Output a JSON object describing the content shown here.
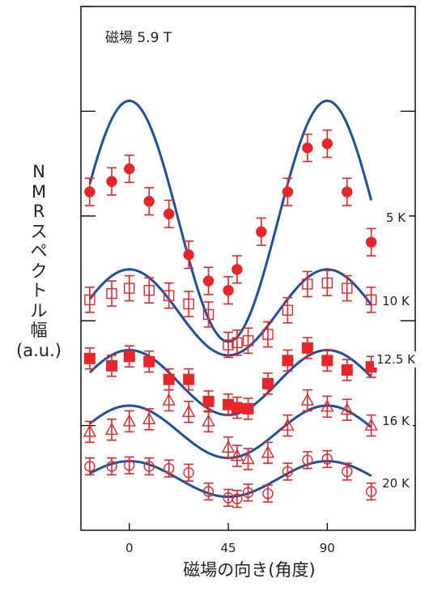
{
  "chart_data": {
    "type": "scatter",
    "annotation": "磁場 5.9 T",
    "xlabel": "磁場の向き(角度)",
    "ylabel_lines": [
      "N",
      "M",
      "R",
      "ス",
      "ペ",
      "ク",
      "ト",
      "ル",
      "幅",
      "(a.u.)"
    ],
    "x_ticks": [
      0,
      45,
      90
    ],
    "xlim": [
      -22,
      130
    ],
    "y_ticks": [
      1,
      2,
      3,
      4,
      5
    ],
    "ylim": [
      0,
      5
    ],
    "colors": {
      "data": "#e8262a",
      "fit": "#1f4f9f",
      "axis": "#000000"
    },
    "series": [
      {
        "name": "5 K",
        "marker": "filled-circle",
        "offset": 2.95,
        "amp": 1.15,
        "points": [
          {
            "x": -18,
            "y": 3.23,
            "err": 0.13
          },
          {
            "x": -8,
            "y": 3.33,
            "err": 0.13
          },
          {
            "x": 0,
            "y": 3.45,
            "err": 0.13
          },
          {
            "x": 9,
            "y": 3.14,
            "err": 0.13
          },
          {
            "x": 18,
            "y": 3.02,
            "err": 0.13
          },
          {
            "x": 27,
            "y": 2.63,
            "err": 0.13
          },
          {
            "x": 36,
            "y": 2.38,
            "err": 0.13
          },
          {
            "x": 45,
            "y": 2.29,
            "err": 0.13
          },
          {
            "x": 49,
            "y": 2.49,
            "err": 0.13
          },
          {
            "x": 60,
            "y": 2.85,
            "err": 0.13
          },
          {
            "x": 72,
            "y": 3.23,
            "err": 0.13
          },
          {
            "x": 81,
            "y": 3.65,
            "err": 0.13
          },
          {
            "x": 90,
            "y": 3.69,
            "err": 0.13
          },
          {
            "x": 99,
            "y": 3.23,
            "err": 0.13
          },
          {
            "x": 110,
            "y": 2.75,
            "err": 0.13
          }
        ]
      },
      {
        "name": "10 K",
        "marker": "open-square",
        "offset": 2.08,
        "amp": 0.41,
        "points": [
          {
            "x": -18,
            "y": 2.2,
            "err": 0.12
          },
          {
            "x": -8,
            "y": 2.26,
            "err": 0.12
          },
          {
            "x": 0,
            "y": 2.31,
            "err": 0.12
          },
          {
            "x": 9,
            "y": 2.29,
            "err": 0.12
          },
          {
            "x": 18,
            "y": 2.24,
            "err": 0.12
          },
          {
            "x": 27,
            "y": 2.16,
            "err": 0.12
          },
          {
            "x": 36,
            "y": 2.06,
            "err": 0.12
          },
          {
            "x": 45,
            "y": 1.77,
            "err": 0.12
          },
          {
            "x": 49,
            "y": 1.79,
            "err": 0.12
          },
          {
            "x": 54,
            "y": 1.81,
            "err": 0.12
          },
          {
            "x": 63,
            "y": 1.87,
            "err": 0.12
          },
          {
            "x": 72,
            "y": 2.1,
            "err": 0.12
          },
          {
            "x": 81,
            "y": 2.35,
            "err": 0.12
          },
          {
            "x": 90,
            "y": 2.36,
            "err": 0.12
          },
          {
            "x": 99,
            "y": 2.31,
            "err": 0.12
          },
          {
            "x": 110,
            "y": 2.2,
            "err": 0.12
          }
        ]
      },
      {
        "name": "12.5 K",
        "marker": "filled-square",
        "offset": 1.41,
        "amp": 0.31,
        "points": [
          {
            "x": -18,
            "y": 1.64,
            "err": 0.1
          },
          {
            "x": -8,
            "y": 1.57,
            "err": 0.1
          },
          {
            "x": 0,
            "y": 1.66,
            "err": 0.1
          },
          {
            "x": 9,
            "y": 1.61,
            "err": 0.1
          },
          {
            "x": 18,
            "y": 1.44,
            "err": 0.1
          },
          {
            "x": 27,
            "y": 1.44,
            "err": 0.1
          },
          {
            "x": 36,
            "y": 1.23,
            "err": 0.1
          },
          {
            "x": 45,
            "y": 1.2,
            "err": 0.1
          },
          {
            "x": 49,
            "y": 1.17,
            "err": 0.1
          },
          {
            "x": 54,
            "y": 1.16,
            "err": 0.1
          },
          {
            "x": 63,
            "y": 1.4,
            "err": 0.1
          },
          {
            "x": 72,
            "y": 1.62,
            "err": 0.1
          },
          {
            "x": 81,
            "y": 1.74,
            "err": 0.1
          },
          {
            "x": 90,
            "y": 1.62,
            "err": 0.1
          },
          {
            "x": 99,
            "y": 1.53,
            "err": 0.1
          },
          {
            "x": 110,
            "y": 1.56,
            "err": 0.1
          }
        ]
      },
      {
        "name": "16 K",
        "marker": "open-triangle",
        "offset": 0.94,
        "amp": 0.25,
        "points": [
          {
            "x": -18,
            "y": 0.94,
            "err": 0.1
          },
          {
            "x": -8,
            "y": 0.96,
            "err": 0.1
          },
          {
            "x": 0,
            "y": 1.04,
            "err": 0.1
          },
          {
            "x": 9,
            "y": 1.06,
            "err": 0.1
          },
          {
            "x": 18,
            "y": 1.24,
            "err": 0.1
          },
          {
            "x": 27,
            "y": 1.13,
            "err": 0.1
          },
          {
            "x": 36,
            "y": 1.04,
            "err": 0.1
          },
          {
            "x": 45,
            "y": 0.79,
            "err": 0.1
          },
          {
            "x": 49,
            "y": 0.71,
            "err": 0.1
          },
          {
            "x": 54,
            "y": 0.68,
            "err": 0.1
          },
          {
            "x": 63,
            "y": 0.74,
            "err": 0.1
          },
          {
            "x": 72,
            "y": 1.0,
            "err": 0.1
          },
          {
            "x": 81,
            "y": 1.24,
            "err": 0.1
          },
          {
            "x": 90,
            "y": 1.18,
            "err": 0.1
          },
          {
            "x": 99,
            "y": 1.15,
            "err": 0.1
          },
          {
            "x": 110,
            "y": 1.0,
            "err": 0.1
          }
        ]
      },
      {
        "name": "20 K",
        "marker": "open-circle",
        "offset": 0.49,
        "amp": 0.17,
        "points": [
          {
            "x": -18,
            "y": 0.61,
            "err": 0.08
          },
          {
            "x": -8,
            "y": 0.61,
            "err": 0.08
          },
          {
            "x": 0,
            "y": 0.62,
            "err": 0.08
          },
          {
            "x": 9,
            "y": 0.61,
            "err": 0.08
          },
          {
            "x": 18,
            "y": 0.59,
            "err": 0.08
          },
          {
            "x": 27,
            "y": 0.55,
            "err": 0.08
          },
          {
            "x": 36,
            "y": 0.37,
            "err": 0.08
          },
          {
            "x": 45,
            "y": 0.31,
            "err": 0.08
          },
          {
            "x": 49,
            "y": 0.3,
            "err": 0.08
          },
          {
            "x": 54,
            "y": 0.36,
            "err": 0.08
          },
          {
            "x": 63,
            "y": 0.35,
            "err": 0.08
          },
          {
            "x": 72,
            "y": 0.56,
            "err": 0.08
          },
          {
            "x": 81,
            "y": 0.67,
            "err": 0.08
          },
          {
            "x": 90,
            "y": 0.68,
            "err": 0.08
          },
          {
            "x": 99,
            "y": 0.56,
            "err": 0.08
          },
          {
            "x": 110,
            "y": 0.37,
            "err": 0.08
          }
        ]
      }
    ]
  }
}
